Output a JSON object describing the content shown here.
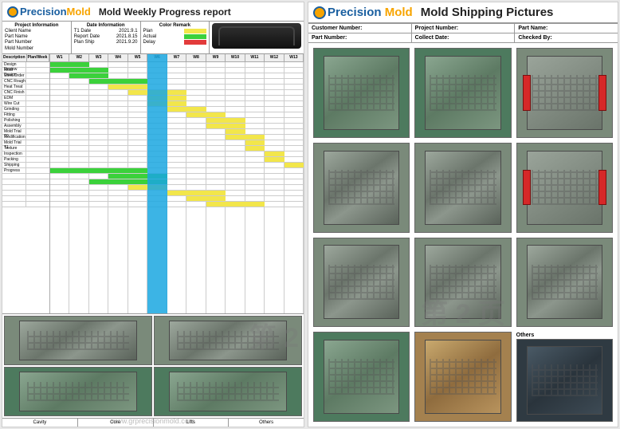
{
  "logo": {
    "brand1": "Precision",
    "brand2": "Mold"
  },
  "left": {
    "title": "Mold Weekly Progress report",
    "info": {
      "project": {
        "title": "Project Information",
        "rows": [
          [
            "Client Name",
            ""
          ],
          [
            "Part Name",
            ""
          ],
          [
            "Part Number",
            ""
          ],
          [
            "Mold Number",
            ""
          ]
        ]
      },
      "date": {
        "title": "Date Information",
        "rows": [
          [
            "T1 Date",
            "2021.9.1"
          ],
          [
            "Report Date",
            "2021.8.15"
          ],
          [
            "Plan Ship",
            "2021.9.20"
          ]
        ]
      },
      "color": {
        "title": "Color Remark",
        "items": [
          {
            "label": "Plan",
            "color": "#f2e64b"
          },
          {
            "label": "Actual",
            "color": "#3bd13b"
          },
          {
            "label": "Delay",
            "color": "#e23b3b"
          }
        ]
      }
    },
    "gantt": {
      "label_headers": [
        "Description",
        "Plan/Week"
      ],
      "week_headers": [
        "W1",
        "W2",
        "W3",
        "W4",
        "W5",
        "W6",
        "W7",
        "W8",
        "W9",
        "W10",
        "W11",
        "W12",
        "W13"
      ],
      "cols": 13,
      "highlight_col": {
        "index": 5,
        "color": "#1aa7e0"
      },
      "tasks": [
        {
          "name": "Design Review",
          "start": 0,
          "span": 2,
          "color": "#3bd13b"
        },
        {
          "name": "Mold Design",
          "start": 0,
          "span": 3,
          "color": "#3bd13b"
        },
        {
          "name": "Steel Order",
          "start": 1,
          "span": 2,
          "color": "#3bd13b"
        },
        {
          "name": "CNC Rough",
          "start": 2,
          "span": 3,
          "color": "#3bd13b"
        },
        {
          "name": "Heat Treat",
          "start": 3,
          "span": 2,
          "color": "#f2e64b"
        },
        {
          "name": "CNC Finish",
          "start": 4,
          "span": 3,
          "color": "#f2e64b"
        },
        {
          "name": "EDM",
          "start": 5,
          "span": 2,
          "color": "#f2e64b"
        },
        {
          "name": "Wire Cut",
          "start": 5,
          "span": 2,
          "color": "#f2e64b"
        },
        {
          "name": "Grinding",
          "start": 6,
          "span": 2,
          "color": "#f2e64b"
        },
        {
          "name": "Fitting",
          "start": 7,
          "span": 2,
          "color": "#f2e64b"
        },
        {
          "name": "Polishing",
          "start": 8,
          "span": 2,
          "color": "#f2e64b"
        },
        {
          "name": "Assembly",
          "start": 8,
          "span": 2,
          "color": "#f2e64b"
        },
        {
          "name": "Mold Trial T0",
          "start": 9,
          "span": 1,
          "color": "#f2e64b"
        },
        {
          "name": "Modification",
          "start": 9,
          "span": 2,
          "color": "#f2e64b"
        },
        {
          "name": "Mold Trial T1",
          "start": 10,
          "span": 1,
          "color": "#f2e64b"
        },
        {
          "name": "Texture",
          "start": 10,
          "span": 1,
          "color": "#f2e64b"
        },
        {
          "name": "Inspection",
          "start": 11,
          "span": 1,
          "color": "#f2e64b"
        },
        {
          "name": "Packing",
          "start": 11,
          "span": 1,
          "color": "#f2e64b"
        },
        {
          "name": "Shipping",
          "start": 12,
          "span": 1,
          "color": "#f2e64b"
        },
        {
          "name": "Progress",
          "start": 0,
          "span": 5,
          "color": "#3bd13b"
        },
        {
          "name": "",
          "start": 3,
          "span": 3,
          "color": "#3bd13b"
        },
        {
          "name": "",
          "start": 2,
          "span": 4,
          "color": "#3bd13b"
        },
        {
          "name": "",
          "start": 4,
          "span": 2,
          "color": "#f2e64b"
        },
        {
          "name": "",
          "start": 6,
          "span": 3,
          "color": "#f2e64b"
        },
        {
          "name": "",
          "start": 7,
          "span": 2,
          "color": "#f2e64b"
        },
        {
          "name": "",
          "start": 8,
          "span": 3,
          "color": "#f2e64b"
        }
      ]
    },
    "captions": [
      "Cavity",
      "Core",
      "Lifts",
      "Others"
    ],
    "watermark": "第 2",
    "url": "www.grprecisionmold.com"
  },
  "right": {
    "title": "Mold Shipping Pictures",
    "form": [
      [
        {
          "lbl": "Customer Number:"
        },
        {
          "lbl": "Project Number:"
        },
        {
          "lbl": "Part Name:"
        }
      ],
      [
        {
          "lbl": "Part Number:"
        },
        {
          "lbl": "Collect Date:"
        },
        {
          "lbl": "Checked By:"
        }
      ]
    ],
    "pics": [
      {
        "variant": "greenish"
      },
      {
        "variant": "greenish"
      },
      {
        "variant": "redclamp"
      },
      {
        "variant": ""
      },
      {
        "variant": ""
      },
      {
        "variant": "redclamp"
      },
      {
        "variant": ""
      },
      {
        "variant": ""
      },
      {
        "variant": ""
      },
      {
        "variant": "greenish"
      },
      {
        "variant": "wood"
      },
      {
        "variant": "dark",
        "label": "Others"
      }
    ],
    "watermark": "第 2 页"
  }
}
